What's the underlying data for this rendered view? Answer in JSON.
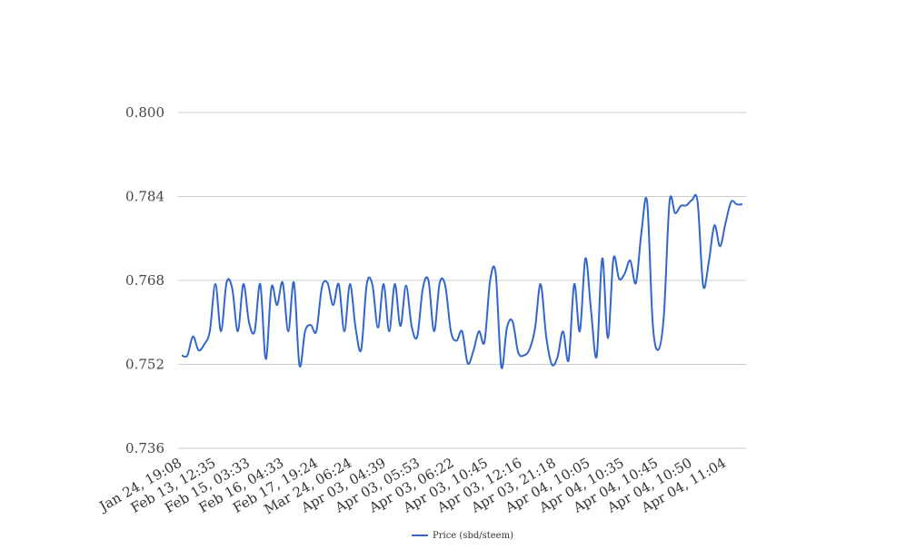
{
  "chart_data": {
    "type": "line",
    "title": "",
    "xlabel": "",
    "ylabel": "",
    "ylim": [
      0.736,
      0.8
    ],
    "y_ticks": [
      "0.736",
      "0.752",
      "0.768",
      "0.784",
      "0.800"
    ],
    "x_tick_labels": [
      "Jan 24, 19:08",
      "Feb 13, 12:35",
      "Feb 15, 03:33",
      "Feb 16, 04:33",
      "Feb 17, 19:24",
      "Mar 24, 06:24",
      "Apr 03, 04:39",
      "Apr 03, 05:53",
      "Apr 03, 06:22",
      "Apr 03, 10:45",
      "Apr 03, 12:16",
      "Apr 03, 21:18",
      "Apr 04, 10:05",
      "Apr 04, 10:35",
      "Apr 04, 10:45",
      "Apr 04, 10:50",
      "Apr 04, 11:04"
    ],
    "grid": true,
    "legend_position": "bottom-center",
    "series": [
      {
        "name": "Price (sbd/steem)",
        "color": "#3366cc",
        "values": [
          0.7537,
          0.7537,
          0.7573,
          0.7547,
          0.7558,
          0.7583,
          0.7673,
          0.7583,
          0.7676,
          0.7665,
          0.7583,
          0.7673,
          0.76,
          0.7583,
          0.7673,
          0.753,
          0.7667,
          0.7633,
          0.7676,
          0.7583,
          0.7676,
          0.7518,
          0.7583,
          0.7595,
          0.7583,
          0.7667,
          0.7675,
          0.7633,
          0.7673,
          0.7583,
          0.7673,
          0.759,
          0.7548,
          0.7673,
          0.7672,
          0.759,
          0.7673,
          0.7583,
          0.7673,
          0.7593,
          0.767,
          0.7593,
          0.7573,
          0.7665,
          0.768,
          0.7583,
          0.7675,
          0.767,
          0.7583,
          0.7565,
          0.7583,
          0.7522,
          0.7545,
          0.7583,
          0.7563,
          0.768,
          0.7693,
          0.7515,
          0.759,
          0.7602,
          0.7543,
          0.7537,
          0.7548,
          0.7588,
          0.7673,
          0.7573,
          0.752,
          0.7533,
          0.7583,
          0.7528,
          0.7673,
          0.7583,
          0.7722,
          0.7623,
          0.7535,
          0.7722,
          0.757,
          0.7722,
          0.7683,
          0.7693,
          0.7718,
          0.7675,
          0.7773,
          0.783,
          0.7598,
          0.7548,
          0.7615,
          0.783,
          0.7808,
          0.7822,
          0.7823,
          0.7833,
          0.783,
          0.767,
          0.7715,
          0.7785,
          0.7745,
          0.779,
          0.783,
          0.7825,
          0.7825
        ]
      }
    ]
  }
}
